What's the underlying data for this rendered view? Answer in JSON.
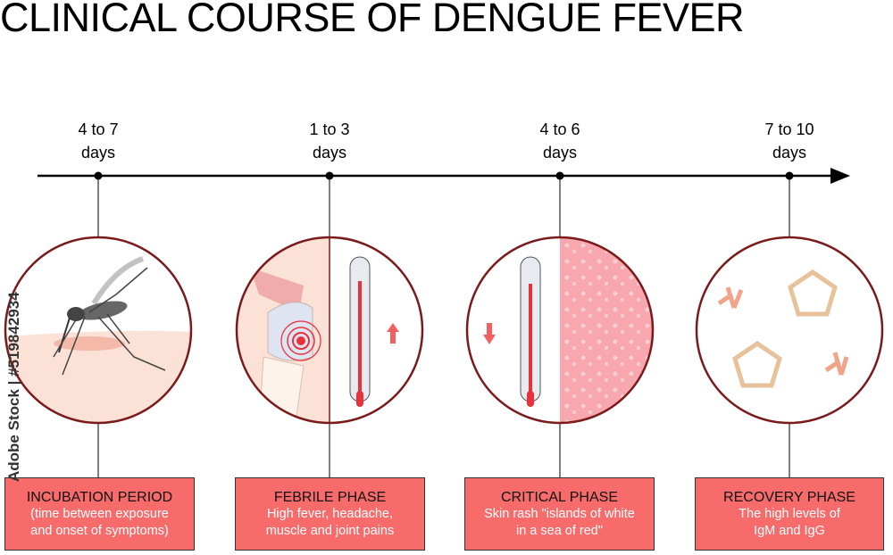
{
  "title": "CLINICAL COURSE OF DENGUE FEVER",
  "phases": [
    {
      "duration_line1": "4 to 7",
      "duration_line2": "days",
      "name": "INCUBATION PERIOD",
      "desc_line1": "(time between exposure",
      "desc_line2": "and onset of symptoms)",
      "icon": "mosquito-on-skin"
    },
    {
      "duration_line1": "1 to 3",
      "duration_line2": "days",
      "name": "FEBRILE PHASE",
      "desc_line1": "High fever, headache,",
      "desc_line2": "muscle and joint pains",
      "icon": "joint-pain-and-rising-thermometer"
    },
    {
      "duration_line1": "4 to 6",
      "duration_line2": "days",
      "name": "CRITICAL PHASE",
      "desc_line1": "Skin rash \"islands of white",
      "desc_line2": "in a sea of red\"",
      "icon": "falling-thermometer-and-rash"
    },
    {
      "duration_line1": "7 to 10",
      "duration_line2": "days",
      "name": "RECOVERY PHASE",
      "desc_line1": "The high levels of",
      "desc_line2": "IgM and IgG",
      "icon": "antibodies"
    }
  ],
  "watermark": "Adobe Stock | #519842934",
  "colors": {
    "box": "#f86b6b",
    "circle_border": "#7b1a1a",
    "skin": "#fbe1d6",
    "thermometer_red": "#e8323a"
  }
}
